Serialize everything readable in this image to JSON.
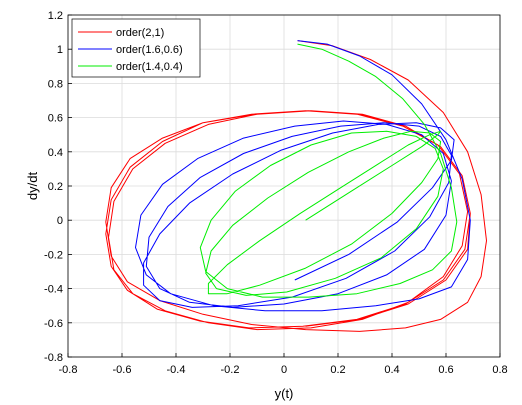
{
  "chart_data": {
    "type": "line",
    "title": "",
    "xlabel": "y(t)",
    "ylabel": "dy/dt",
    "xlim": [
      -0.8,
      0.8
    ],
    "ylim": [
      -0.8,
      1.2
    ],
    "xticks": [
      "-0.8",
      "-0.6",
      "-0.4",
      "-0.2",
      "0",
      "0.2",
      "0.4",
      "0.6",
      "0.8"
    ],
    "yticks": [
      "-0.8",
      "-0.6",
      "-0.4",
      "-0.2",
      "0",
      "0.2",
      "0.4",
      "0.6",
      "0.8",
      "1",
      "1.2"
    ],
    "grid": true,
    "legend_position": "top-left",
    "series": [
      {
        "name": "order(2,1)",
        "color": "#ff0000",
        "x": [
          0.05,
          0.18,
          0.32,
          0.46,
          0.59,
          0.68,
          0.73,
          0.75,
          0.73,
          0.68,
          0.58,
          0.45,
          0.28,
          0.08,
          -0.12,
          -0.3,
          -0.46,
          -0.58,
          -0.64,
          -0.66,
          -0.64,
          -0.57,
          -0.45,
          -0.3,
          -0.12,
          0.08,
          0.27,
          0.44,
          0.57,
          0.65,
          0.68,
          0.66,
          0.59,
          0.46,
          0.29,
          0.1,
          -0.1,
          -0.28,
          -0.44,
          -0.56,
          -0.63,
          -0.65,
          -0.63,
          -0.56,
          -0.44,
          -0.28,
          -0.1,
          0.1,
          0.29,
          0.45,
          0.58,
          0.66,
          0.69,
          0.67,
          0.59,
          0.45,
          0.27,
          0.07,
          -0.13,
          -0.31,
          -0.47,
          -0.58,
          -0.64,
          -0.66,
          -0.64,
          -0.57,
          -0.45,
          -0.3,
          -0.11,
          0.09,
          0.28,
          0.45,
          0.58,
          0.66,
          0.69,
          0.68,
          0.6,
          0.46,
          0.28,
          0.08
        ],
        "y": [
          1.05,
          1.02,
          0.94,
          0.82,
          0.63,
          0.4,
          0.15,
          -0.12,
          -0.33,
          -0.48,
          -0.58,
          -0.63,
          -0.65,
          -0.64,
          -0.61,
          -0.55,
          -0.47,
          -0.36,
          -0.21,
          -0.01,
          0.19,
          0.36,
          0.48,
          0.57,
          0.62,
          0.64,
          0.62,
          0.55,
          0.44,
          0.27,
          0.05,
          -0.15,
          -0.33,
          -0.48,
          -0.58,
          -0.63,
          -0.64,
          -0.6,
          -0.53,
          -0.43,
          -0.29,
          -0.1,
          0.11,
          0.3,
          0.45,
          0.56,
          0.62,
          0.64,
          0.62,
          0.55,
          0.43,
          0.26,
          0.04,
          -0.17,
          -0.35,
          -0.49,
          -0.58,
          -0.62,
          -0.63,
          -0.59,
          -0.52,
          -0.41,
          -0.27,
          -0.08,
          0.12,
          0.31,
          0.46,
          0.57,
          0.62,
          0.64,
          0.62,
          0.55,
          0.43,
          0.26,
          0.04,
          -0.17,
          -0.35,
          -0.49,
          -0.58,
          -0.62
        ]
      },
      {
        "name": "order(1.6,0.6)",
        "color": "#0000ff",
        "x": [
          0.05,
          0.16,
          0.28,
          0.4,
          0.51,
          0.6,
          0.66,
          0.69,
          0.68,
          0.62,
          0.5,
          0.34,
          0.14,
          -0.07,
          -0.26,
          -0.42,
          -0.51,
          -0.55,
          -0.53,
          -0.45,
          -0.32,
          -0.15,
          0.04,
          0.22,
          0.38,
          0.51,
          0.59,
          0.62,
          0.6,
          0.52,
          0.38,
          0.2,
          0.0,
          -0.19,
          -0.35,
          -0.46,
          -0.51,
          -0.5,
          -0.43,
          -0.31,
          -0.15,
          0.03,
          0.21,
          0.37,
          0.5,
          0.58,
          0.62,
          0.61,
          0.54,
          0.41,
          0.23,
          0.03,
          -0.17,
          -0.34,
          -0.46,
          -0.52,
          -0.52,
          -0.46,
          -0.35,
          -0.19,
          -0.01,
          0.18,
          0.35,
          0.49,
          0.58,
          0.63,
          0.62,
          0.55,
          0.42,
          0.24,
          0.04
        ],
        "y": [
          1.05,
          1.03,
          0.96,
          0.85,
          0.68,
          0.47,
          0.24,
          0.0,
          -0.23,
          -0.39,
          -0.46,
          -0.5,
          -0.53,
          -0.53,
          -0.5,
          -0.43,
          -0.32,
          -0.16,
          0.03,
          0.21,
          0.36,
          0.48,
          0.55,
          0.58,
          0.56,
          0.5,
          0.39,
          0.23,
          0.03,
          -0.17,
          -0.32,
          -0.43,
          -0.49,
          -0.51,
          -0.48,
          -0.4,
          -0.27,
          -0.1,
          0.08,
          0.25,
          0.39,
          0.49,
          0.55,
          0.57,
          0.55,
          0.49,
          0.38,
          0.22,
          0.02,
          -0.18,
          -0.34,
          -0.45,
          -0.5,
          -0.51,
          -0.47,
          -0.38,
          -0.25,
          -0.08,
          0.1,
          0.27,
          0.41,
          0.51,
          0.56,
          0.57,
          0.54,
          0.47,
          0.35,
          0.19,
          -0.01,
          -0.2,
          -0.35
        ]
      },
      {
        "name": "order(1.4,0.4)",
        "color": "#00ee00",
        "x": [
          0.05,
          0.14,
          0.24,
          0.34,
          0.44,
          0.52,
          0.58,
          0.62,
          0.64,
          0.62,
          0.55,
          0.43,
          0.27,
          0.09,
          -0.08,
          -0.21,
          -0.29,
          -0.31,
          -0.27,
          -0.18,
          -0.05,
          0.1,
          0.25,
          0.38,
          0.49,
          0.56,
          0.59,
          0.57,
          0.49,
          0.36,
          0.19,
          0.01,
          -0.14,
          -0.25,
          -0.29,
          -0.27,
          -0.19,
          -0.06,
          0.09,
          0.24,
          0.37,
          0.47,
          0.54,
          0.58,
          0.57,
          0.51,
          0.4,
          0.25,
          0.08,
          -0.09,
          -0.21,
          -0.28,
          -0.28,
          -0.21,
          -0.09,
          0.06,
          0.21,
          0.35,
          0.46,
          0.54,
          0.58,
          0.57,
          0.51,
          0.4,
          0.25,
          0.08
        ],
        "y": [
          1.03,
          1.0,
          0.93,
          0.84,
          0.71,
          0.56,
          0.39,
          0.19,
          -0.01,
          -0.18,
          -0.29,
          -0.37,
          -0.43,
          -0.45,
          -0.45,
          -0.4,
          -0.3,
          -0.16,
          0.0,
          0.17,
          0.32,
          0.44,
          0.51,
          0.52,
          0.49,
          0.42,
          0.3,
          0.14,
          -0.05,
          -0.22,
          -0.34,
          -0.42,
          -0.44,
          -0.4,
          -0.31,
          -0.18,
          -0.03,
          0.13,
          0.28,
          0.4,
          0.48,
          0.52,
          0.51,
          0.46,
          0.36,
          0.22,
          0.04,
          -0.14,
          -0.28,
          -0.38,
          -0.43,
          -0.43,
          -0.37,
          -0.26,
          -0.12,
          0.04,
          0.19,
          0.33,
          0.44,
          0.5,
          0.52,
          0.5,
          0.43,
          0.32,
          0.17,
          0.0
        ]
      }
    ]
  }
}
